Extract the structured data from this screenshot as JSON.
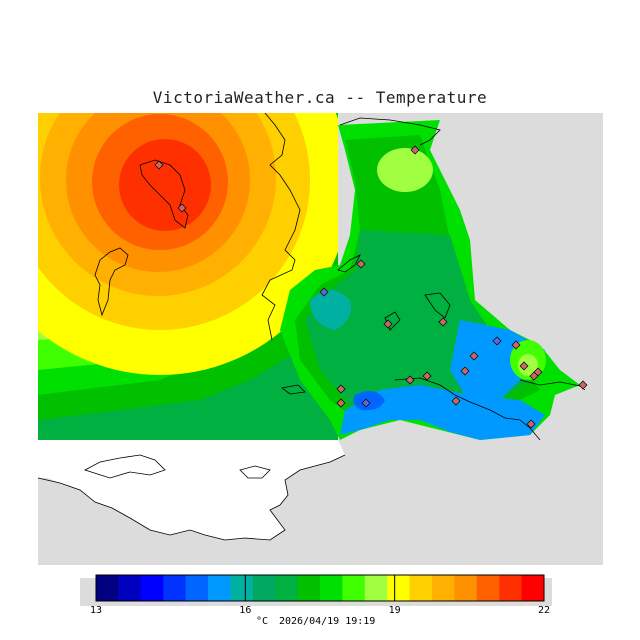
{
  "header": {
    "title": "VictoriaWeather.ca -- Temperature"
  },
  "legend": {
    "unit": "°C",
    "timestamp": "2026/04/19 19:19",
    "ticks": [
      "13",
      "16",
      "19",
      "22"
    ],
    "range": [
      13,
      22
    ],
    "colors": [
      "#000080",
      "#0000c0",
      "#0000ff",
      "#0033ff",
      "#0066ff",
      "#0099ff",
      "#00b0a0",
      "#00a860",
      "#00b040",
      "#00c000",
      "#00e000",
      "#40ff00",
      "#a0ff40",
      "#ffff00",
      "#ffd000",
      "#ffb000",
      "#ff9000",
      "#ff6000",
      "#ff3000",
      "#ff0000"
    ]
  },
  "map": {
    "land_color": "#ffffff",
    "nodata_color": "#dcdcdc",
    "station_marker": "diamond",
    "station_count": 22
  }
}
